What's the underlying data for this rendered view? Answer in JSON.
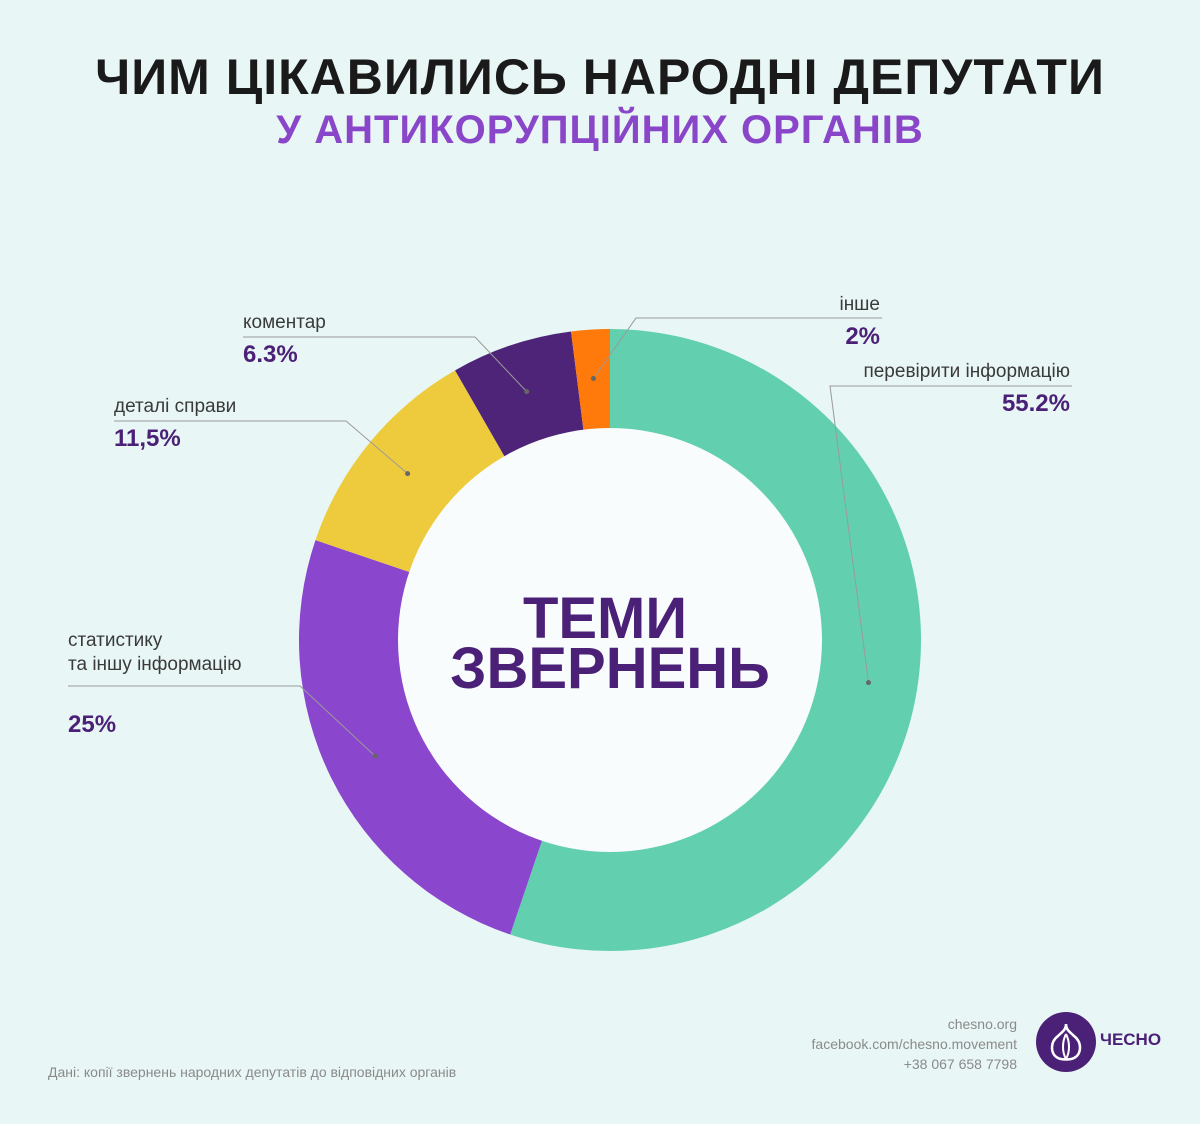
{
  "header": {
    "title": "ЧИМ ЦІКАВИЛИСЬ НАРОДНІ ДЕПУТАТИ",
    "subtitle": "У АНТИКОРУПЦІЙНИХ ОРГАНІВ"
  },
  "chart_data": {
    "type": "pie",
    "variant": "donut",
    "center_text": [
      "ТЕМИ",
      "ЗВЕРНЕНЬ"
    ],
    "slices": [
      {
        "label": [
          "перевірити інформацію"
        ],
        "value": 55.2,
        "value_label": "55.2%",
        "color": "#62d0af"
      },
      {
        "label": [
          "статистику",
          "та іншу інформацію"
        ],
        "value": 25,
        "value_label": "25%",
        "color": "#8a46cc"
      },
      {
        "label": [
          "деталі справи"
        ],
        "value": 11.5,
        "value_label": "11,5%",
        "color": "#eecb3c"
      },
      {
        "label": [
          "коментар"
        ],
        "value": 6.3,
        "value_label": "6.3%",
        "color": "#4e2479"
      },
      {
        "label": [
          "інше"
        ],
        "value": 2,
        "value_label": "2%",
        "color": "#ff7a0a"
      }
    ]
  },
  "footer": {
    "source": "Дані: копії звернень народних депутатів до відповідних органів",
    "website": "chesno.org",
    "facebook": "facebook.com/chesno.movement",
    "phone": "+38 067 658 7798",
    "brand": "ЧЕСНО",
    "brand_icon": "garlic-icon"
  }
}
